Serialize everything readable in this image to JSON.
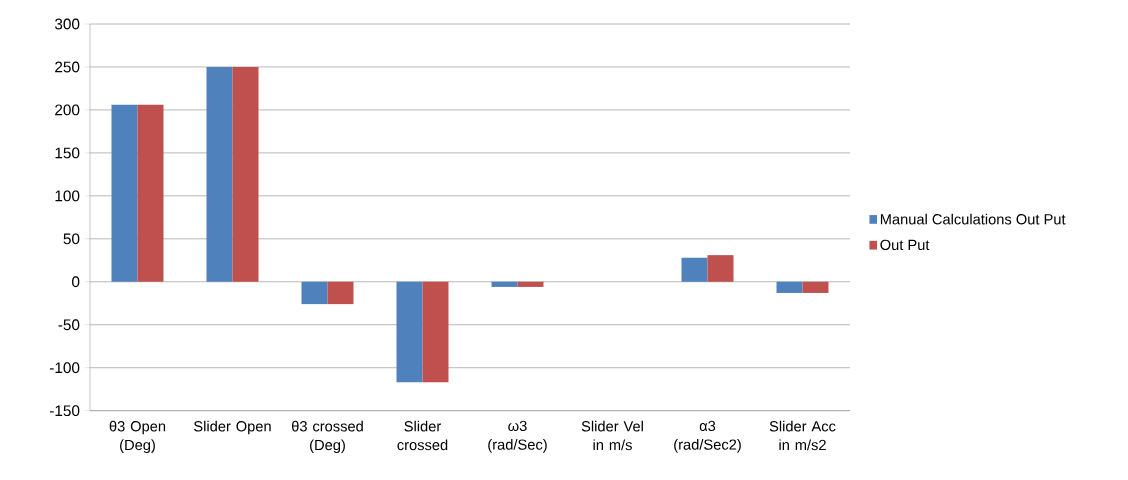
{
  "chart_data": {
    "type": "bar",
    "categories": [
      "θ3 Open (Deg)",
      "Slider Open",
      "θ3 crossed (Deg)",
      "Slider crossed",
      "ω3 (rad/Sec)",
      "Slider Vel in m/s",
      "α3 (rad/Sec2)",
      "Slider Acc in m/s2"
    ],
    "series": [
      {
        "name": "Manual Calculations Out Put",
        "color": "#4f81bd",
        "values": [
          206,
          250,
          -26,
          -117,
          -6,
          0,
          28,
          -13
        ]
      },
      {
        "name": "Out Put",
        "color": "#c0504d",
        "values": [
          206,
          250,
          -26,
          -117,
          -6,
          0,
          31,
          -13
        ]
      }
    ],
    "ylim": [
      -150,
      300
    ],
    "yticks": [
      -150,
      -100,
      -50,
      0,
      50,
      100,
      150,
      200,
      250,
      300
    ],
    "grid": "y",
    "legend": "right"
  }
}
